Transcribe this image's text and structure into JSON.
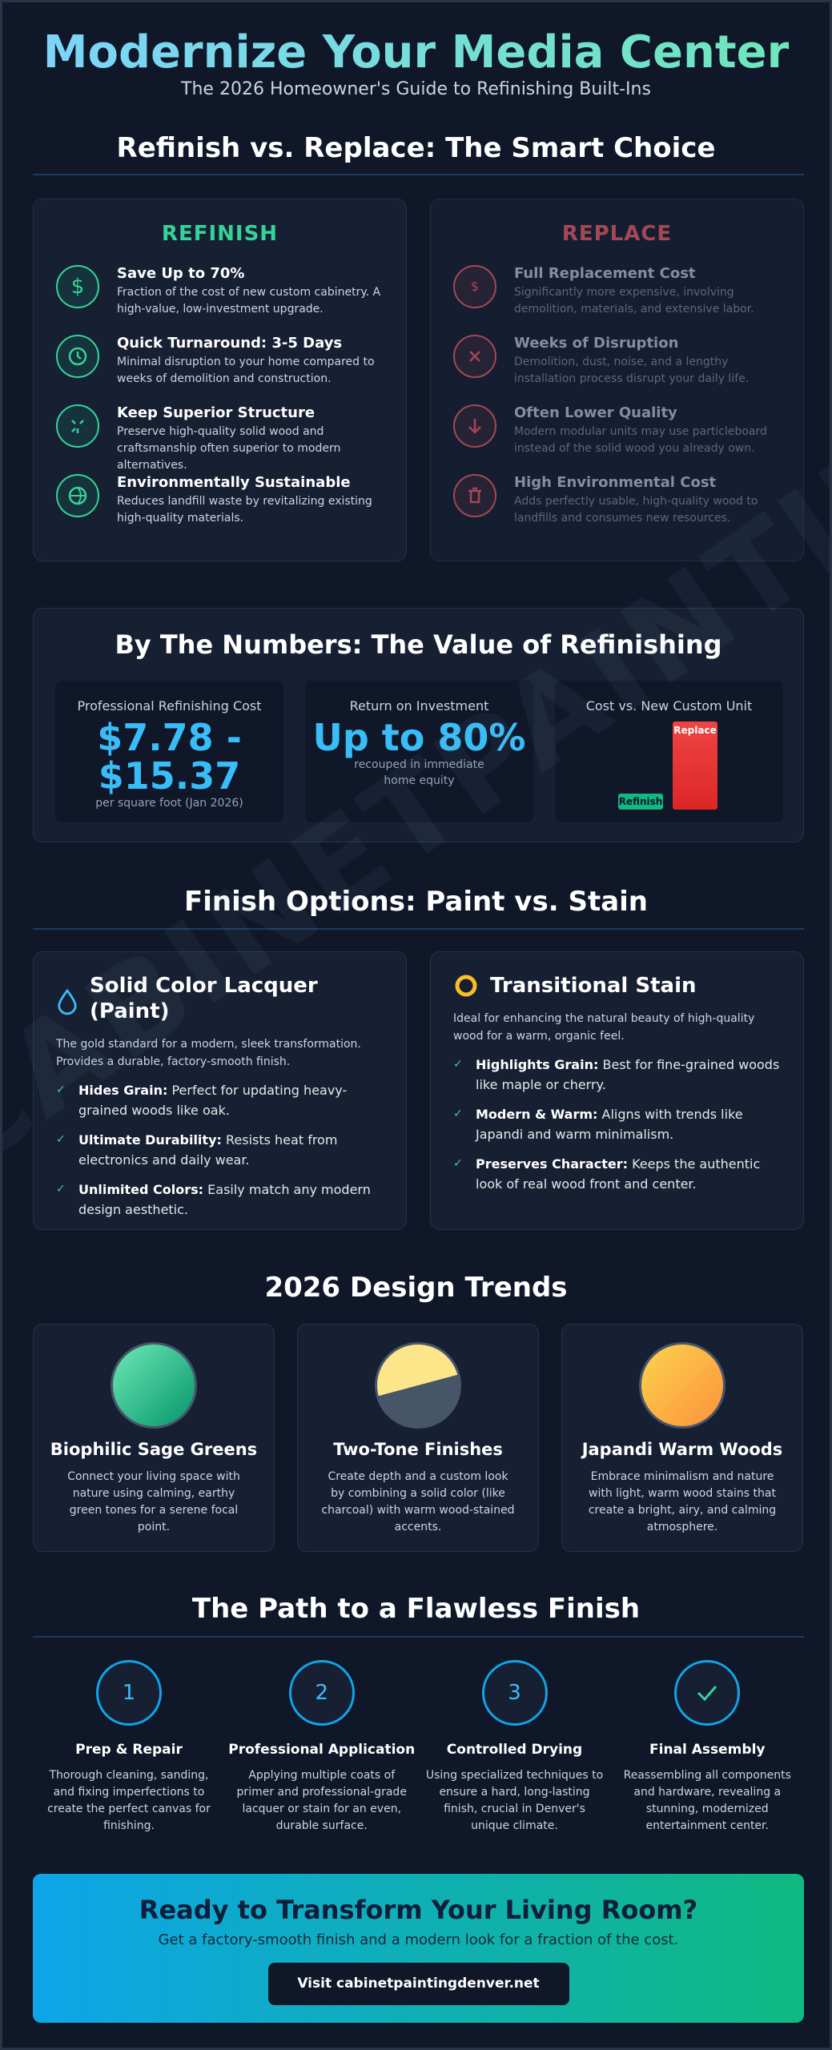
{
  "header": {
    "title": "Modernize Your Media Center",
    "subtitle": "The 2026 Homeowner's Guide to Refinishing Built-Ins"
  },
  "watermark": "CABINETPAINTINGDENVER",
  "comparison": {
    "heading": "Refinish vs. Replace: The Smart Choice",
    "refinish": {
      "title": "REFINISH",
      "items": [
        {
          "title": "Save Up to 70%",
          "text": "Fraction of the cost of new custom cabinetry. A high-value, low-investment upgrade."
        },
        {
          "title": "Quick Turnaround: 3-5 Days",
          "text": "Minimal disruption to your home compared to weeks of demolition and construction."
        },
        {
          "title": "Keep Superior Structure",
          "text": "Preserve high-quality solid wood and craftsmanship often superior to modern alternatives."
        },
        {
          "title": "Environmentally Sustainable",
          "text": "Reduces landfill waste by revitalizing existing high-quality materials."
        }
      ]
    },
    "replace": {
      "title": "REPLACE",
      "items": [
        {
          "title": "Full Replacement Cost",
          "text": "Significantly more expensive, involving demolition, materials, and extensive labor."
        },
        {
          "title": "Weeks of Disruption",
          "text": "Demolition, dust, noise, and a lengthy installation process disrupt your daily life."
        },
        {
          "title": "Often Lower Quality",
          "text": "Modern modular units may use particleboard instead of the solid wood you already own."
        },
        {
          "title": "High Environmental Cost",
          "text": "Adds perfectly usable, high-quality wood to landfills and consumes new resources."
        }
      ]
    }
  },
  "numbers": {
    "heading": "By The Numbers: The Value of Refinishing",
    "stats": [
      {
        "label": "Professional Refinishing Cost",
        "value": "$7.78 - $15.37",
        "note": "per square foot (Jan 2026)"
      },
      {
        "label": "Return on Investment",
        "value": "Up to 80%",
        "note": "recouped in immediate home equity"
      }
    ],
    "chart": {
      "label": "Cost vs. New Custom Unit",
      "bars": [
        "Refinish",
        "Replace"
      ]
    }
  },
  "finish": {
    "heading": "Finish Options: Paint vs. Stain",
    "paint": {
      "title": "Solid Color Lacquer (Paint)",
      "intro": "The gold standard for a modern, sleek transformation. Provides a durable, factory-smooth finish.",
      "items": [
        {
          "title": "Hides Grain:",
          "text": "Perfect for updating heavy-grained woods like oak."
        },
        {
          "title": "Ultimate Durability:",
          "text": "Resists heat from electronics and daily wear."
        },
        {
          "title": "Unlimited Colors:",
          "text": "Easily match any modern design aesthetic."
        }
      ]
    },
    "stain": {
      "title": "Transitional Stain",
      "intro": "Ideal for enhancing the natural beauty of high-quality wood for a warm, organic feel.",
      "items": [
        {
          "title": "Highlights Grain:",
          "text": "Best for fine-grained woods like maple or cherry."
        },
        {
          "title": "Modern & Warm:",
          "text": "Aligns with trends like Japandi and warm minimalism."
        },
        {
          "title": "Preserves Character:",
          "text": "Keeps the authentic look of real wood front and center."
        }
      ]
    }
  },
  "trends": {
    "heading": "2026 Design Trends",
    "items": [
      {
        "title": "Biophilic Sage Greens",
        "text": "Connect your living space with nature using calming, earthy green tones for a serene focal point."
      },
      {
        "title": "Two-Tone Finishes",
        "text": "Create depth and a custom look by combining a solid color (like charcoal) with warm wood-stained accents."
      },
      {
        "title": "Japandi Warm Woods",
        "text": "Embrace minimalism and nature with light, warm wood stains that create a bright, airy, and calming atmosphere."
      }
    ]
  },
  "path": {
    "heading": "The Path to a Flawless Finish",
    "steps": [
      {
        "number": "1",
        "title": "Prep & Repair",
        "text": "Thorough cleaning, sanding, and fixing imperfections to create the perfect canvas for finishing."
      },
      {
        "number": "2",
        "title": "Professional Application",
        "text": "Applying multiple coats of primer and professional-grade lacquer or stain for an even, durable surface."
      },
      {
        "number": "3",
        "title": "Controlled Drying",
        "text": "Using specialized techniques to ensure a hard, long-lasting finish, crucial in Denver's unique climate."
      },
      {
        "title": "Final Assembly",
        "text": "Reassembling all components and hardware, revealing a stunning, modernized entertainment center."
      }
    ]
  },
  "cta": {
    "title": "Ready to Transform Your Living Room?",
    "subtitle": "Get a factory-smooth finish and a modern look for a fraction of the cost.",
    "button": "Visit cabinetpaintingdenver.net"
  }
}
